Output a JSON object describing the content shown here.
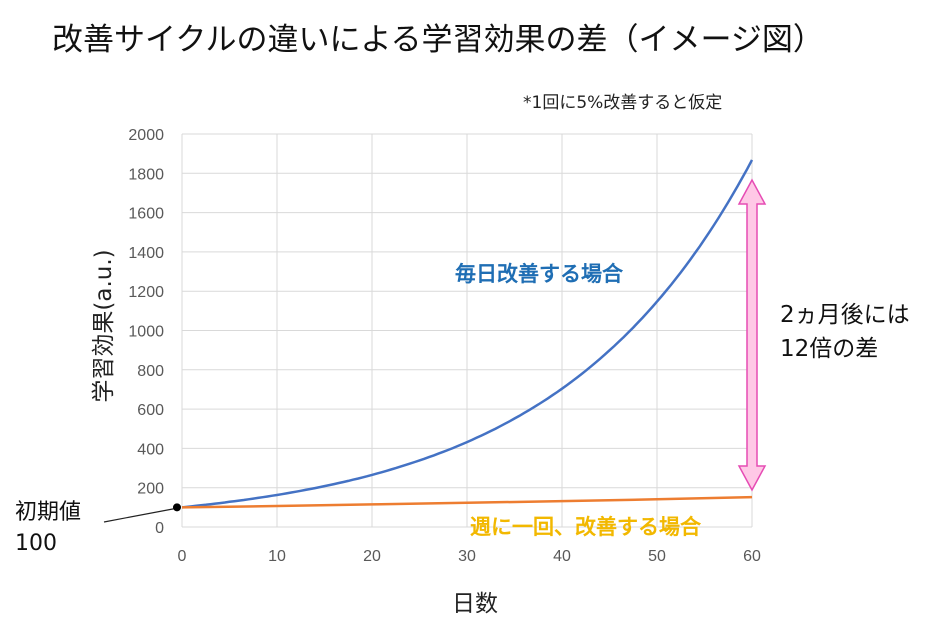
{
  "chart_data": {
    "type": "line",
    "title": "改善サイクルの違いによる学習効果の差（イメージ図）",
    "note": "*1回に5%改善すると仮定",
    "xlabel": "日数",
    "ylabel": "学習効果(a.u.)",
    "xlim": [
      0,
      60
    ],
    "ylim": [
      0,
      2000
    ],
    "x_ticks": [
      "0",
      "10",
      "20",
      "30",
      "40",
      "50",
      "60"
    ],
    "y_ticks": [
      "0",
      "200",
      "400",
      "600",
      "800",
      "1000",
      "1200",
      "1400",
      "1600",
      "1800",
      "2000"
    ],
    "grid": true,
    "series": [
      {
        "name": "毎日改善する場合",
        "color": "#4472c4",
        "x": [
          0,
          5,
          10,
          15,
          20,
          25,
          30,
          35,
          40,
          45,
          50,
          55,
          60
        ],
        "values": [
          100,
          128,
          163,
          208,
          265,
          339,
          432,
          552,
          704,
          899,
          1147,
          1464,
          1868
        ]
      },
      {
        "name": "週に一回、改善する場合",
        "color": "#ed7d31",
        "x": [
          0,
          10,
          20,
          30,
          40,
          50,
          60
        ],
        "values": [
          100,
          107,
          115,
          123,
          132,
          141,
          152
        ]
      }
    ],
    "annotations": {
      "gap_lines": [
        "2ヵ月後には",
        "12倍の差"
      ],
      "initial_lines": [
        "初期値",
        "100"
      ],
      "initial_point": [
        0,
        100
      ]
    }
  },
  "colors": {
    "daily_text": "#1f6eb4",
    "weekly_text": "#f2b800",
    "arrow_fill": "#ffc8e6",
    "arrow_stroke": "#e64cb4",
    "grid": "#d9d9d9"
  }
}
